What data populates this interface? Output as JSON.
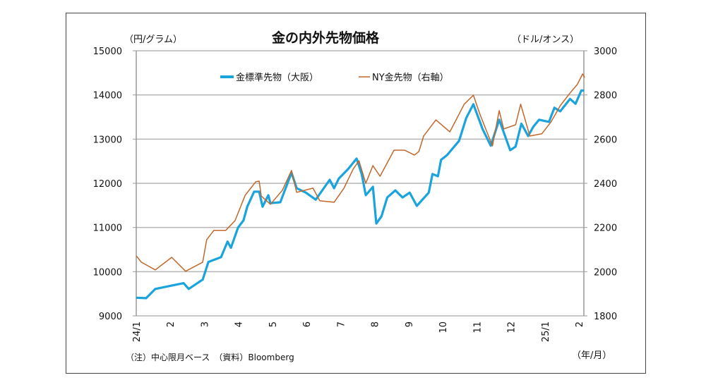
{
  "chart_data": {
    "type": "line",
    "title": "金の内外先物価格",
    "ylabel_left": "（円/グラム）",
    "ylabel_right": "（ドル/オンス）",
    "xlabel": "（年/月）",
    "note": "（注）中心限月ベース　（資料）Bloomberg",
    "x_unit": "months since 2024/1",
    "x_ticks": [
      "24/1",
      "2",
      "3",
      "4",
      "5",
      "6",
      "7",
      "8",
      "9",
      "10",
      "11",
      "12",
      "25/1",
      "2"
    ],
    "ylim_left": [
      9000,
      15000
    ],
    "yticks_left": [
      "9000",
      "10000",
      "11000",
      "12000",
      "13000",
      "14000",
      "15000"
    ],
    "ylim_right": [
      1800,
      3000
    ],
    "yticks_right": [
      "1800",
      "2000",
      "2200",
      "2400",
      "2600",
      "2800",
      "3000"
    ],
    "grid": true,
    "legend_position": "top-center",
    "series": [
      {
        "name": "金標準先物（大阪）",
        "axis": "left",
        "color": "#1aa3dc",
        "x": [
          0,
          0.29,
          0.56,
          1.39,
          1.54,
          1.95,
          2.12,
          2.49,
          2.68,
          2.78,
          2.99,
          3.15,
          3.26,
          3.46,
          3.61,
          3.71,
          3.88,
          3.94,
          4.23,
          4.56,
          4.71,
          4.98,
          5.27,
          5.68,
          5.81,
          5.95,
          6.22,
          6.47,
          6.62,
          6.74,
          6.95,
          7.05,
          7.2,
          7.37,
          7.61,
          7.82,
          8.03,
          8.24,
          8.59,
          8.7,
          8.86,
          8.95,
          9.13,
          9.48,
          9.69,
          9.9,
          10.17,
          10.41,
          10.66,
          10.98,
          11.14,
          11.31,
          11.51,
          11.66,
          11.83,
          12.12,
          12.28,
          12.45,
          12.74,
          12.9,
          13.07,
          13.15
        ],
        "y": [
          9410,
          9400,
          9610,
          9740,
          9610,
          9820,
          10220,
          10330,
          10680,
          10540,
          11000,
          11160,
          11470,
          11810,
          11810,
          11470,
          11730,
          11550,
          11570,
          12240,
          11890,
          11790,
          11630,
          12080,
          11890,
          12110,
          12320,
          12560,
          12210,
          11730,
          11920,
          11090,
          11250,
          11680,
          11840,
          11680,
          11790,
          11490,
          11790,
          12210,
          12160,
          12530,
          12640,
          12960,
          13480,
          13790,
          13230,
          12850,
          13440,
          12750,
          12830,
          13350,
          13070,
          13280,
          13440,
          13390,
          13710,
          13630,
          13910,
          13800,
          14100,
          14100
        ]
      },
      {
        "name": "NY金先物（右軸）",
        "axis": "right",
        "color": "#c0672a",
        "x": [
          0,
          0.15,
          0.56,
          1.04,
          1.45,
          1.95,
          2.07,
          2.28,
          2.63,
          2.9,
          3.2,
          3.51,
          3.61,
          3.67,
          3.94,
          4.29,
          4.56,
          4.71,
          5.19,
          5.39,
          5.81,
          6.1,
          6.37,
          6.54,
          6.74,
          6.95,
          7.16,
          7.57,
          7.88,
          8.17,
          8.3,
          8.44,
          8.8,
          9.21,
          9.63,
          9.9,
          10.1,
          10.46,
          10.66,
          10.79,
          11.14,
          11.29,
          11.56,
          11.91,
          12.18,
          12.45,
          12.74,
          12.95,
          13.11,
          13.17
        ],
        "y": [
          2072,
          2043,
          2008,
          2065,
          2002,
          2043,
          2145,
          2187,
          2187,
          2231,
          2346,
          2407,
          2410,
          2343,
          2305,
          2368,
          2458,
          2359,
          2378,
          2321,
          2314,
          2378,
          2464,
          2502,
          2400,
          2480,
          2432,
          2550,
          2550,
          2528,
          2544,
          2614,
          2687,
          2633,
          2758,
          2799,
          2710,
          2569,
          2729,
          2646,
          2665,
          2758,
          2614,
          2624,
          2678,
          2751,
          2809,
          2847,
          2895,
          2879
        ]
      }
    ]
  }
}
